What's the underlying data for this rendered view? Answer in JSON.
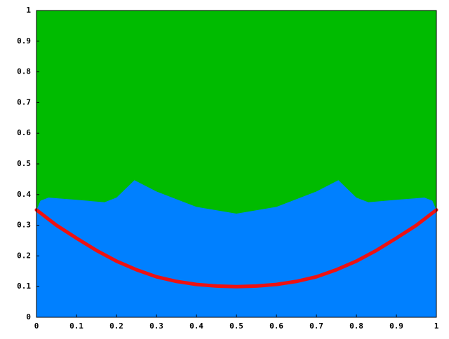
{
  "chart_data": {
    "type": "area",
    "xlim": [
      0,
      1
    ],
    "ylim": [
      0,
      1
    ],
    "xticks": [
      0,
      0.1,
      0.2,
      0.3,
      0.4,
      0.5,
      0.6,
      0.7,
      0.8,
      0.9,
      1
    ],
    "yticks": [
      0,
      0.1,
      0.2,
      0.3,
      0.4,
      0.5,
      0.6,
      0.7,
      0.8,
      0.9,
      1
    ],
    "background_color": "#00bb00",
    "series": [
      {
        "kind": "area",
        "color": "#0080ff",
        "x": [
          0,
          0.01,
          0.03,
          0.1,
          0.17,
          0.2,
          0.245,
          0.3,
          0.4,
          0.5,
          0.6,
          0.7,
          0.755,
          0.8,
          0.83,
          0.9,
          0.97,
          0.99,
          1
        ],
        "values": [
          0.35,
          0.38,
          0.39,
          0.383,
          0.375,
          0.39,
          0.447,
          0.41,
          0.36,
          0.338,
          0.36,
          0.41,
          0.447,
          0.39,
          0.375,
          0.383,
          0.39,
          0.38,
          0.35
        ]
      },
      {
        "kind": "line",
        "color": "#ee1111",
        "x": [
          0,
          0.05,
          0.1,
          0.15,
          0.2,
          0.25,
          0.3,
          0.35,
          0.4,
          0.45,
          0.5,
          0.55,
          0.6,
          0.65,
          0.7,
          0.75,
          0.8,
          0.85,
          0.9,
          0.95,
          1
        ],
        "values": [
          0.35,
          0.3,
          0.258,
          0.218,
          0.183,
          0.155,
          0.132,
          0.117,
          0.107,
          0.102,
          0.1,
          0.102,
          0.107,
          0.117,
          0.132,
          0.155,
          0.183,
          0.218,
          0.258,
          0.3,
          0.35
        ]
      }
    ]
  }
}
